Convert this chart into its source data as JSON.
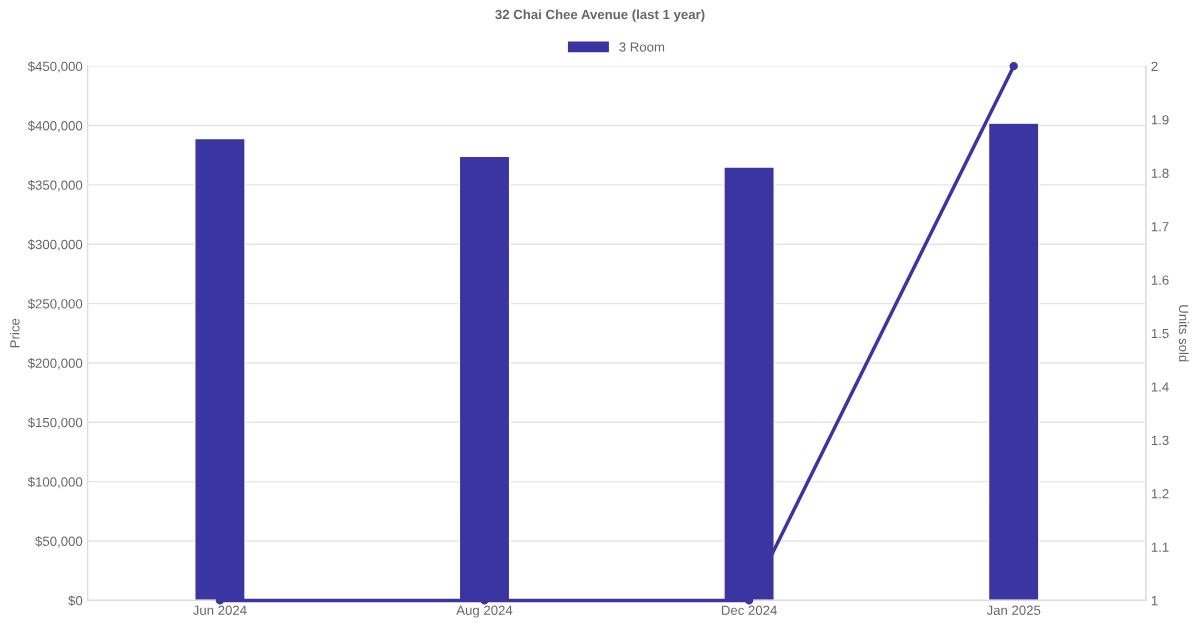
{
  "chart_data": {
    "type": "bar",
    "title": "32 Chai Chee Avenue (last 1 year)",
    "ylabel": "Price",
    "y2label": "Units sold",
    "categories": [
      "Jun 2024",
      "Aug 2024",
      "Dec 2024",
      "Jan 2025"
    ],
    "series": [
      {
        "name": "3 Room",
        "color": "#3a35a0",
        "values": [
          389000,
          374000,
          365000,
          402000
        ]
      },
      {
        "type": "line",
        "axis": "y2",
        "color": "#3a35a0",
        "marker": "circle",
        "values": [
          1,
          1,
          1,
          2
        ]
      }
    ],
    "ylim": [
      0,
      450000
    ],
    "yticks": [
      {
        "value": 0,
        "label": "$0"
      },
      {
        "value": 50000,
        "label": "$50,000"
      },
      {
        "value": 100000,
        "label": "$100,000"
      },
      {
        "value": 150000,
        "label": "$150,000"
      },
      {
        "value": 200000,
        "label": "$200,000"
      },
      {
        "value": 250000,
        "label": "$250,000"
      },
      {
        "value": 300000,
        "label": "$300,000"
      },
      {
        "value": 350000,
        "label": "$350,000"
      },
      {
        "value": 400000,
        "label": "$400,000"
      },
      {
        "value": 450000,
        "label": "$450,000"
      }
    ],
    "y2lim": [
      1,
      2
    ],
    "y2ticks": [
      1,
      1.1,
      1.2,
      1.3,
      1.4,
      1.5,
      1.6,
      1.7,
      1.8,
      1.9,
      2
    ],
    "grid": "y",
    "legend": "top"
  }
}
